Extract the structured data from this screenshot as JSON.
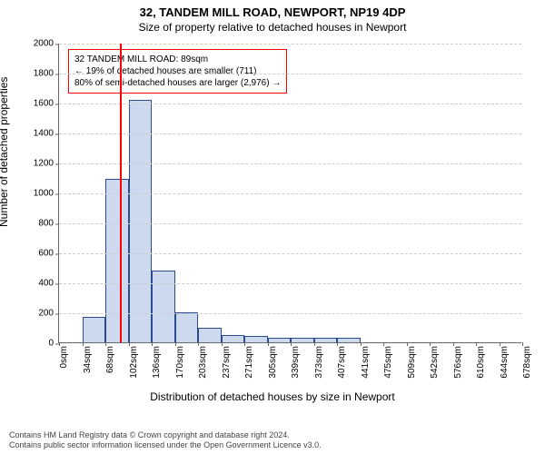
{
  "title_main": "32, TANDEM MILL ROAD, NEWPORT, NP19 4DP",
  "title_sub": "Size of property relative to detached houses in Newport",
  "y_axis_label": "Number of detached properties",
  "x_axis_label": "Distribution of detached houses by size in Newport",
  "chart": {
    "type": "histogram",
    "ylim_max": 2000,
    "ytick_step": 200,
    "yticks": [
      0,
      200,
      400,
      600,
      800,
      1000,
      1200,
      1400,
      1600,
      1800,
      2000
    ],
    "x_categories": [
      "0sqm",
      "34sqm",
      "68sqm",
      "102sqm",
      "136sqm",
      "170sqm",
      "203sqm",
      "237sqm",
      "271sqm",
      "305sqm",
      "339sqm",
      "373sqm",
      "407sqm",
      "441sqm",
      "475sqm",
      "509sqm",
      "542sqm",
      "576sqm",
      "610sqm",
      "644sqm",
      "678sqm"
    ],
    "bar_values": [
      0,
      170,
      1090,
      1620,
      480,
      200,
      100,
      50,
      40,
      30,
      30,
      30,
      30,
      0,
      0,
      0,
      0,
      0,
      0,
      0
    ],
    "bar_fill": "#cdd9ee",
    "bar_stroke": "#2a4b8d",
    "bar_stroke_width": 1,
    "grid_color": "#cccccc",
    "axis_color": "#666666",
    "background": "#ffffff",
    "marker_value_sqm": 89,
    "marker_color": "#ff0000",
    "callout_border": "#ff0000",
    "callout_bg": "#ffffff",
    "font_family": "Arial",
    "tick_fontsize": 10,
    "label_fontsize": 12,
    "title_fontsize": 13
  },
  "callout": {
    "line1": "32 TANDEM MILL ROAD: 89sqm",
    "line2": "← 19% of detached houses are smaller (711)",
    "line3": "80% of semi-detached houses are larger (2,976) →"
  },
  "footer": {
    "line1": "Contains HM Land Registry data © Crown copyright and database right 2024.",
    "line2": "Contains public sector information licensed under the Open Government Licence v3.0."
  }
}
